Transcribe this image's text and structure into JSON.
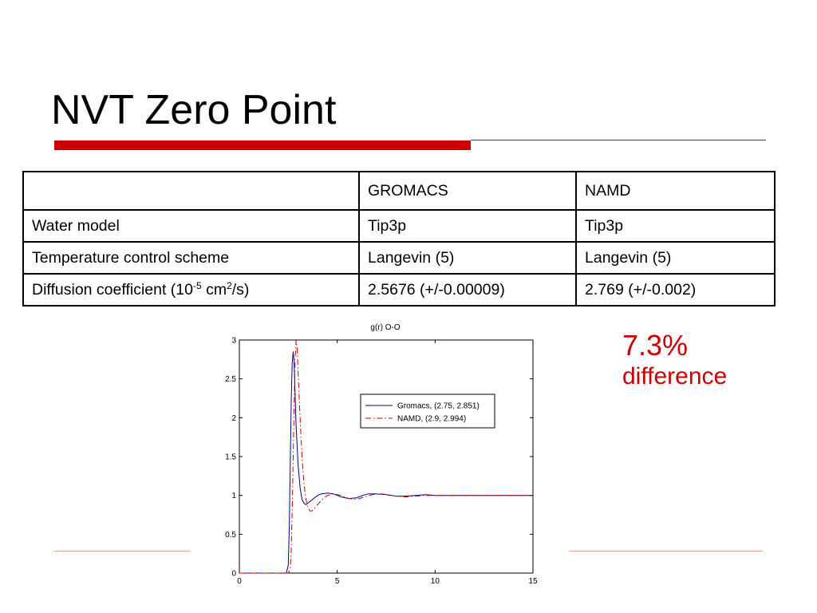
{
  "slide": {
    "title": "NVT Zero Point"
  },
  "table": {
    "headers": [
      "",
      "GROMACS",
      "NAMD"
    ],
    "rows": [
      {
        "label": "Water model",
        "gromacs": "Tip3p",
        "namd": "Tip3p"
      },
      {
        "label": "Temperature control scheme",
        "gromacs": "Langevin (5)",
        "namd": "Langevin (5)"
      },
      {
        "label_parts": [
          "Diffusion coefficient  (10",
          "-5",
          " cm",
          "2",
          "/s)"
        ],
        "gromacs": "2.5676 (+/-0.00009)",
        "namd": "2.769 (+/-0.002)"
      }
    ]
  },
  "note": {
    "value": "7.3%",
    "label": "difference"
  },
  "colors": {
    "accent": "#cc0000",
    "gromacs_line": "#00008b",
    "namd_line": "#cc0000"
  },
  "chart_data": {
    "type": "line",
    "title": "g(r) O-O",
    "xlabel": "",
    "ylabel": "",
    "xlim": [
      0,
      15
    ],
    "ylim": [
      0,
      3
    ],
    "xticks": [
      "0",
      "5",
      "10",
      "15"
    ],
    "yticks": [
      "0",
      "0.5",
      "1",
      "1.5",
      "2",
      "2.5",
      "3"
    ],
    "legend_position": "upper-right",
    "series": [
      {
        "name": "Gromacs, (2.75, 2.851)",
        "style": "solid",
        "x": [
          0,
          2.4,
          2.5,
          2.55,
          2.6,
          2.65,
          2.7,
          2.75,
          2.8,
          2.85,
          2.9,
          3.0,
          3.1,
          3.2,
          3.3,
          3.4,
          3.5,
          3.6,
          3.8,
          4.0,
          4.2,
          4.5,
          4.8,
          5.2,
          5.6,
          6.0,
          6.3,
          6.6,
          7.0,
          7.5,
          8.0,
          8.5,
          9.0,
          9.5,
          10.0,
          10.5,
          11,
          12,
          13,
          14,
          15
        ],
        "y": [
          0,
          0,
          0.1,
          0.6,
          1.4,
          2.2,
          2.7,
          2.851,
          2.7,
          2.3,
          1.9,
          1.4,
          1.1,
          0.95,
          0.9,
          0.88,
          0.9,
          0.92,
          0.96,
          1.0,
          1.02,
          1.03,
          1.02,
          0.98,
          0.96,
          0.97,
          1.0,
          1.02,
          1.02,
          1.01,
          0.99,
          0.99,
          1.0,
          1.01,
          1.0,
          1.0,
          1.0,
          1.0,
          1.0,
          1.0,
          1.0
        ]
      },
      {
        "name": "NAMD, (2.9, 2.994)",
        "style": "dashdot",
        "x": [
          0,
          2.5,
          2.6,
          2.65,
          2.7,
          2.75,
          2.8,
          2.85,
          2.9,
          2.95,
          3.0,
          3.1,
          3.2,
          3.3,
          3.4,
          3.5,
          3.6,
          3.7,
          3.8,
          4.0,
          4.2,
          4.5,
          4.8,
          5.2,
          5.6,
          6.0,
          6.4,
          6.8,
          7.2,
          7.6,
          8.0,
          8.5,
          9.0,
          9.5,
          10.0,
          10.5,
          11,
          12,
          13,
          14,
          15
        ],
        "y": [
          0,
          0,
          0.05,
          0.3,
          0.8,
          1.5,
          2.2,
          2.75,
          2.994,
          2.9,
          2.6,
          2.0,
          1.5,
          1.15,
          0.95,
          0.85,
          0.8,
          0.8,
          0.82,
          0.88,
          0.94,
          1.0,
          1.02,
          1.0,
          0.96,
          0.95,
          0.98,
          1.01,
          1.02,
          1.01,
          0.99,
          0.98,
          0.99,
          1.0,
          1.0,
          1.0,
          1.0,
          1.0,
          1.0,
          1.0,
          1.0
        ]
      }
    ]
  }
}
